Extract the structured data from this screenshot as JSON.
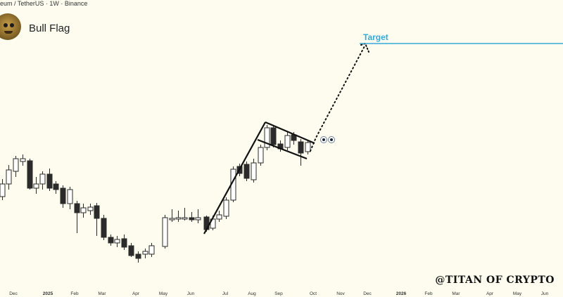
{
  "header": {
    "symbol_line": "eum / TetherUS · 1W · Binance"
  },
  "title": "Bull Flag",
  "watermark": "@TITAN OF CRYPTO",
  "colors": {
    "background": "#fdfcef",
    "bull_body": "#ffffff",
    "bear_body": "#2b2b2b",
    "candle_outline": "#2b2b2b",
    "target_line": "#36a9d8",
    "target_label": "#36a9d8",
    "pattern_line": "#111111"
  },
  "chart_data": {
    "type": "candlestick",
    "xlabel": "",
    "ylabel": "",
    "x_ticks": [
      "Dec",
      "2025",
      "Feb",
      "Mar",
      "Apr",
      "May",
      "Jun",
      "Jul",
      "Aug",
      "Sep",
      "Oct",
      "Nov",
      "Dec",
      "2026",
      "Feb",
      "Mar",
      "Apr",
      "May",
      "Jun"
    ],
    "bold_ticks": [
      "2025",
      "2026"
    ],
    "annotations": {
      "target_label": "Target",
      "pattern": "bull flag with flagpole and projected dotted path to target"
    }
  }
}
